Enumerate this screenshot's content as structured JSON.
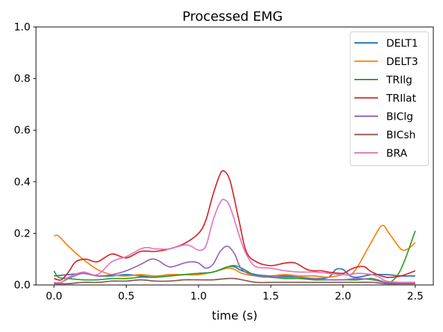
{
  "chart_data": {
    "type": "line",
    "title": "Processed EMG",
    "xlabel": "time (s)",
    "ylabel": "",
    "xlim": [
      -0.125,
      2.625
    ],
    "ylim": [
      0,
      1
    ],
    "xticks": [
      0.0,
      0.5,
      1.0,
      1.5,
      2.0,
      2.5
    ],
    "xtick_labels": [
      "0.0",
      "0.5",
      "1.0",
      "1.5",
      "2.0",
      "2.5"
    ],
    "yticks": [
      0.0,
      0.2,
      0.4,
      0.6,
      0.8,
      1.0
    ],
    "ytick_labels": [
      "0.0",
      "0.2",
      "0.4",
      "0.6",
      "0.8",
      "1.0"
    ],
    "grid": false,
    "legend_position": "top-right",
    "series": [
      {
        "name": "DELT1",
        "color": "#1f77b4",
        "points": [
          [
            0.0,
            0.035
          ],
          [
            0.1,
            0.04
          ],
          [
            0.2,
            0.045
          ],
          [
            0.3,
            0.035
          ],
          [
            0.4,
            0.035
          ],
          [
            0.5,
            0.04
          ],
          [
            0.6,
            0.035
          ],
          [
            0.7,
            0.03
          ],
          [
            0.8,
            0.035
          ],
          [
            0.9,
            0.04
          ],
          [
            1.0,
            0.045
          ],
          [
            1.1,
            0.05
          ],
          [
            1.2,
            0.07
          ],
          [
            1.25,
            0.07
          ],
          [
            1.3,
            0.055
          ],
          [
            1.4,
            0.04
          ],
          [
            1.5,
            0.035
          ],
          [
            1.6,
            0.035
          ],
          [
            1.7,
            0.03
          ],
          [
            1.8,
            0.025
          ],
          [
            1.9,
            0.03
          ],
          [
            1.95,
            0.06
          ],
          [
            2.0,
            0.06
          ],
          [
            2.05,
            0.035
          ],
          [
            2.1,
            0.03
          ],
          [
            2.2,
            0.04
          ],
          [
            2.3,
            0.04
          ],
          [
            2.4,
            0.035
          ],
          [
            2.5,
            0.035
          ]
        ]
      },
      {
        "name": "DELT3",
        "color": "#ff7f0e",
        "points": [
          [
            0.0,
            0.19
          ],
          [
            0.03,
            0.19
          ],
          [
            0.1,
            0.15
          ],
          [
            0.2,
            0.1
          ],
          [
            0.3,
            0.06
          ],
          [
            0.4,
            0.04
          ],
          [
            0.5,
            0.035
          ],
          [
            0.6,
            0.04
          ],
          [
            0.7,
            0.035
          ],
          [
            0.8,
            0.04
          ],
          [
            0.9,
            0.04
          ],
          [
            1.0,
            0.04
          ],
          [
            1.1,
            0.05
          ],
          [
            1.2,
            0.065
          ],
          [
            1.25,
            0.06
          ],
          [
            1.3,
            0.045
          ],
          [
            1.4,
            0.035
          ],
          [
            1.5,
            0.035
          ],
          [
            1.6,
            0.04
          ],
          [
            1.7,
            0.035
          ],
          [
            1.8,
            0.035
          ],
          [
            1.9,
            0.03
          ],
          [
            2.0,
            0.04
          ],
          [
            2.05,
            0.04
          ],
          [
            2.1,
            0.07
          ],
          [
            2.2,
            0.17
          ],
          [
            2.27,
            0.23
          ],
          [
            2.32,
            0.2
          ],
          [
            2.4,
            0.14
          ],
          [
            2.45,
            0.14
          ],
          [
            2.5,
            0.165
          ]
        ]
      },
      {
        "name": "TRIlg",
        "color": "#2ca02c",
        "points": [
          [
            0.0,
            0.055
          ],
          [
            0.03,
            0.03
          ],
          [
            0.1,
            0.025
          ],
          [
            0.2,
            0.02
          ],
          [
            0.3,
            0.02
          ],
          [
            0.4,
            0.025
          ],
          [
            0.5,
            0.025
          ],
          [
            0.6,
            0.03
          ],
          [
            0.7,
            0.03
          ],
          [
            0.8,
            0.035
          ],
          [
            0.9,
            0.04
          ],
          [
            1.0,
            0.045
          ],
          [
            1.1,
            0.05
          ],
          [
            1.2,
            0.07
          ],
          [
            1.25,
            0.075
          ],
          [
            1.3,
            0.065
          ],
          [
            1.4,
            0.035
          ],
          [
            1.5,
            0.03
          ],
          [
            1.6,
            0.025
          ],
          [
            1.7,
            0.025
          ],
          [
            1.8,
            0.02
          ],
          [
            1.9,
            0.02
          ],
          [
            2.0,
            0.02
          ],
          [
            2.1,
            0.02
          ],
          [
            2.2,
            0.025
          ],
          [
            2.3,
            0.01
          ],
          [
            2.35,
            0.02
          ],
          [
            2.4,
            0.06
          ],
          [
            2.45,
            0.13
          ],
          [
            2.5,
            0.21
          ]
        ]
      },
      {
        "name": "TRIlat",
        "color": "#d62728",
        "points": [
          [
            0.0,
            0.025
          ],
          [
            0.05,
            0.02
          ],
          [
            0.1,
            0.05
          ],
          [
            0.15,
            0.09
          ],
          [
            0.22,
            0.1
          ],
          [
            0.3,
            0.09
          ],
          [
            0.4,
            0.12
          ],
          [
            0.5,
            0.105
          ],
          [
            0.6,
            0.13
          ],
          [
            0.7,
            0.13
          ],
          [
            0.8,
            0.14
          ],
          [
            0.9,
            0.16
          ],
          [
            1.0,
            0.2
          ],
          [
            1.05,
            0.25
          ],
          [
            1.1,
            0.35
          ],
          [
            1.15,
            0.43
          ],
          [
            1.18,
            0.44
          ],
          [
            1.22,
            0.4
          ],
          [
            1.28,
            0.25
          ],
          [
            1.33,
            0.13
          ],
          [
            1.4,
            0.09
          ],
          [
            1.5,
            0.075
          ],
          [
            1.6,
            0.085
          ],
          [
            1.67,
            0.085
          ],
          [
            1.75,
            0.06
          ],
          [
            1.8,
            0.055
          ],
          [
            1.85,
            0.055
          ],
          [
            1.9,
            0.05
          ],
          [
            2.0,
            0.045
          ],
          [
            2.05,
            0.06
          ],
          [
            2.1,
            0.07
          ],
          [
            2.15,
            0.07
          ],
          [
            2.2,
            0.05
          ],
          [
            2.3,
            0.03
          ],
          [
            2.4,
            0.035
          ],
          [
            2.5,
            0.055
          ]
        ]
      },
      {
        "name": "BIClg",
        "color": "#9467bd",
        "points": [
          [
            0.0,
            0.005
          ],
          [
            0.05,
            0.01
          ],
          [
            0.1,
            0.025
          ],
          [
            0.2,
            0.045
          ],
          [
            0.3,
            0.035
          ],
          [
            0.4,
            0.04
          ],
          [
            0.5,
            0.055
          ],
          [
            0.6,
            0.08
          ],
          [
            0.67,
            0.1
          ],
          [
            0.72,
            0.095
          ],
          [
            0.8,
            0.07
          ],
          [
            0.9,
            0.085
          ],
          [
            0.95,
            0.09
          ],
          [
            1.0,
            0.085
          ],
          [
            1.05,
            0.065
          ],
          [
            1.1,
            0.08
          ],
          [
            1.15,
            0.13
          ],
          [
            1.2,
            0.15
          ],
          [
            1.25,
            0.12
          ],
          [
            1.3,
            0.06
          ],
          [
            1.4,
            0.035
          ],
          [
            1.5,
            0.035
          ],
          [
            1.6,
            0.03
          ],
          [
            1.7,
            0.03
          ],
          [
            1.8,
            0.025
          ],
          [
            1.9,
            0.02
          ],
          [
            2.0,
            0.02
          ],
          [
            2.1,
            0.025
          ],
          [
            2.2,
            0.02
          ],
          [
            2.3,
            0.01
          ],
          [
            2.4,
            0.01
          ],
          [
            2.5,
            0.01
          ]
        ]
      },
      {
        "name": "BICsh",
        "color": "#8c564b",
        "points": [
          [
            0.0,
            0.005
          ],
          [
            0.1,
            0.005
          ],
          [
            0.2,
            0.01
          ],
          [
            0.3,
            0.01
          ],
          [
            0.4,
            0.015
          ],
          [
            0.5,
            0.015
          ],
          [
            0.6,
            0.02
          ],
          [
            0.7,
            0.015
          ],
          [
            0.8,
            0.015
          ],
          [
            0.9,
            0.02
          ],
          [
            1.0,
            0.02
          ],
          [
            1.1,
            0.02
          ],
          [
            1.2,
            0.025
          ],
          [
            1.25,
            0.025
          ],
          [
            1.3,
            0.02
          ],
          [
            1.4,
            0.01
          ],
          [
            1.5,
            0.01
          ],
          [
            1.6,
            0.01
          ],
          [
            1.7,
            0.01
          ],
          [
            1.8,
            0.01
          ],
          [
            1.9,
            0.01
          ],
          [
            2.0,
            0.01
          ],
          [
            2.1,
            0.01
          ],
          [
            2.2,
            0.01
          ],
          [
            2.3,
            0.005
          ],
          [
            2.4,
            0.005
          ],
          [
            2.5,
            0.005
          ]
        ]
      },
      {
        "name": "BRA",
        "color": "#e377c2",
        "points": [
          [
            0.0,
            0.01
          ],
          [
            0.05,
            0.01
          ],
          [
            0.1,
            0.03
          ],
          [
            0.2,
            0.05
          ],
          [
            0.3,
            0.04
          ],
          [
            0.4,
            0.09
          ],
          [
            0.5,
            0.11
          ],
          [
            0.6,
            0.14
          ],
          [
            0.65,
            0.145
          ],
          [
            0.7,
            0.14
          ],
          [
            0.8,
            0.14
          ],
          [
            0.9,
            0.155
          ],
          [
            0.95,
            0.15
          ],
          [
            1.0,
            0.135
          ],
          [
            1.05,
            0.15
          ],
          [
            1.1,
            0.25
          ],
          [
            1.15,
            0.32
          ],
          [
            1.18,
            0.33
          ],
          [
            1.22,
            0.3
          ],
          [
            1.3,
            0.16
          ],
          [
            1.35,
            0.1
          ],
          [
            1.4,
            0.07
          ],
          [
            1.5,
            0.065
          ],
          [
            1.6,
            0.055
          ],
          [
            1.7,
            0.05
          ],
          [
            1.8,
            0.05
          ],
          [
            1.9,
            0.045
          ],
          [
            2.0,
            0.04
          ],
          [
            2.05,
            0.04
          ],
          [
            2.1,
            0.045
          ],
          [
            2.2,
            0.04
          ],
          [
            2.25,
            0.03
          ],
          [
            2.3,
            0.015
          ],
          [
            2.4,
            0.01
          ],
          [
            2.5,
            0.01
          ]
        ]
      }
    ]
  }
}
